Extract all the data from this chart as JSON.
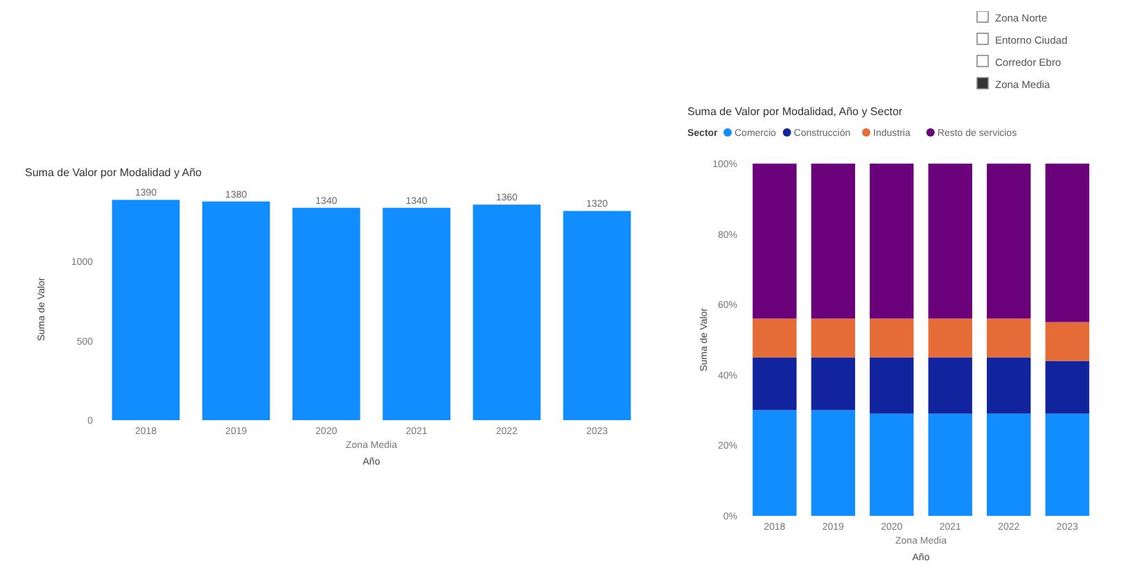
{
  "chart_data": [
    {
      "type": "bar",
      "title": "Suma de Valor por Modalidad y Año",
      "xlabel": "Año",
      "ylabel": "Suma de Valor",
      "annotations": [
        "Zona Media"
      ],
      "categories": [
        "2018",
        "2019",
        "2020",
        "2021",
        "2022",
        "2023"
      ],
      "values": [
        1390,
        1380,
        1340,
        1340,
        1360,
        1320
      ],
      "color": "#118dff",
      "data_labels": true,
      "ylim": [
        0,
        1400
      ],
      "yticks": [
        0,
        500,
        1000
      ],
      "grid": false,
      "legend": false
    },
    {
      "type": "bar",
      "stacked": true,
      "title": "Suma de Valor por Modalidad, Año y Sector",
      "legend_title": "Sector",
      "xlabel": "Año",
      "ylabel": "Suma de Valor",
      "annotations": [
        "Zona Media"
      ],
      "categories": [
        "2018",
        "2019",
        "2020",
        "2021",
        "2022",
        "2023"
      ],
      "series": [
        {
          "name": "Comercio",
          "color": "#118dff",
          "values": [
            30,
            30,
            29,
            29,
            29,
            29
          ]
        },
        {
          "name": "Construcción",
          "color": "#12239e",
          "values": [
            15,
            15,
            16,
            16,
            16,
            15
          ]
        },
        {
          "name": "Industria",
          "color": "#e66c37",
          "values": [
            11,
            11,
            11,
            11,
            11,
            11
          ]
        },
        {
          "name": "Resto de servicios",
          "color": "#6b007b",
          "values": [
            44,
            44,
            44,
            44,
            44,
            45
          ]
        }
      ],
      "ylim": [
        0,
        100
      ],
      "yticks": [
        {
          "value": 0,
          "label": "0%"
        },
        {
          "value": 20,
          "label": "20%"
        },
        {
          "value": 40,
          "label": "40%"
        },
        {
          "value": 60,
          "label": "60%"
        },
        {
          "value": 80,
          "label": "80%"
        },
        {
          "value": 100,
          "label": "100%"
        }
      ],
      "legend": "top left"
    },
    {
      "type": "other",
      "annotations": [
        "Zona Norte",
        "Entorno Ciudad",
        "Corredor Ebro",
        "Zona Media"
      ]
    }
  ]
}
